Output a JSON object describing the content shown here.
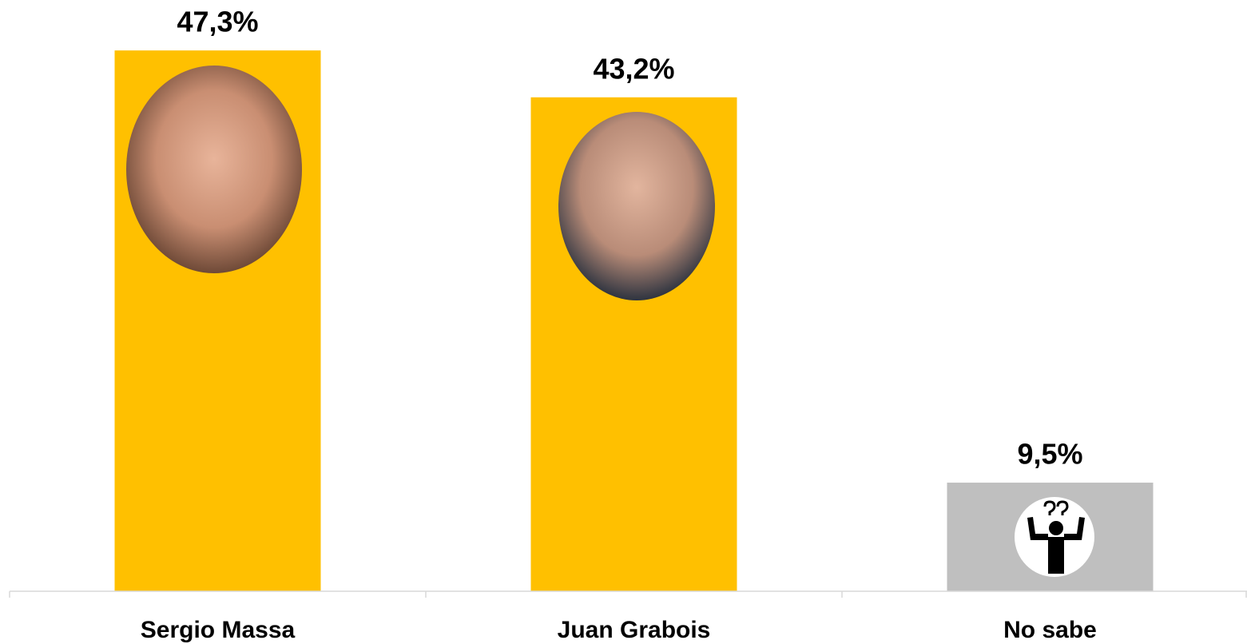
{
  "chart_data": {
    "type": "bar",
    "categories": [
      "Sergio Massa",
      "Juan Grabois",
      "No sabe"
    ],
    "values": [
      47.3,
      43.2,
      9.5
    ],
    "value_labels": [
      "47,3%",
      "43,2%",
      "9,5%"
    ],
    "colors": [
      "#FFC000",
      "#FFC000",
      "#BFBFBF"
    ],
    "ylim": [
      0,
      50
    ]
  }
}
